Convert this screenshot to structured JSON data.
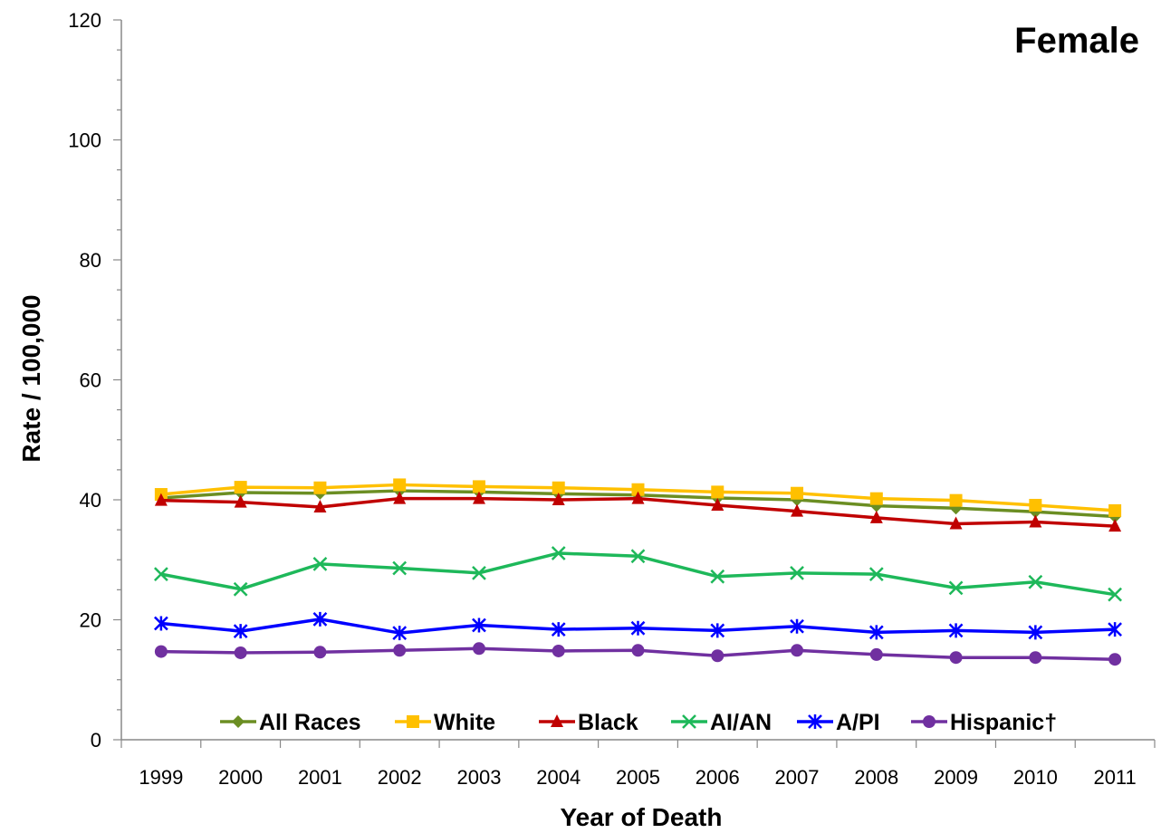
{
  "chart_data": {
    "type": "line",
    "title": "Female",
    "xlabel": "Year of Death",
    "ylabel": "Rate / 100,000",
    "ylim": [
      0,
      120
    ],
    "yticks": [
      0,
      20,
      40,
      60,
      80,
      100,
      120
    ],
    "grid": false,
    "legend_position": "bottom-inside",
    "x": [
      "1999",
      "2000",
      "2001",
      "2002",
      "2003",
      "2004",
      "2005",
      "2006",
      "2007",
      "2008",
      "2009",
      "2010",
      "2011"
    ],
    "series": [
      {
        "name": "All Races",
        "color": "#6b8e23",
        "marker": "diamond",
        "values": [
          40.3,
          41.2,
          41.1,
          41.5,
          41.3,
          41.0,
          40.8,
          40.3,
          40.0,
          39.0,
          38.6,
          38.0,
          37.2
        ]
      },
      {
        "name": "White",
        "color": "#ffc000",
        "marker": "square",
        "values": [
          40.9,
          42.1,
          42.0,
          42.5,
          42.2,
          42.0,
          41.7,
          41.3,
          41.1,
          40.2,
          39.9,
          39.1,
          38.2
        ]
      },
      {
        "name": "Black",
        "color": "#c00000",
        "marker": "triangle",
        "values": [
          39.9,
          39.6,
          38.8,
          40.2,
          40.2,
          40.0,
          40.2,
          39.1,
          38.1,
          37.0,
          36.0,
          36.3,
          35.6
        ]
      },
      {
        "name": "AI/AN",
        "color": "#1eb85a",
        "marker": "x",
        "values": [
          27.6,
          25.1,
          29.3,
          28.6,
          27.8,
          31.1,
          30.6,
          27.2,
          27.8,
          27.6,
          25.3,
          26.3,
          24.2
        ]
      },
      {
        "name": "A/PI",
        "color": "#0000ff",
        "marker": "asterisk",
        "values": [
          19.4,
          18.1,
          20.1,
          17.8,
          19.1,
          18.4,
          18.6,
          18.2,
          18.9,
          17.9,
          18.2,
          17.9,
          18.4
        ]
      },
      {
        "name": "Hispanic†",
        "color": "#7030a0",
        "marker": "circle",
        "values": [
          14.7,
          14.5,
          14.6,
          14.9,
          15.2,
          14.8,
          14.9,
          14.0,
          14.9,
          14.2,
          13.7,
          13.7,
          13.4
        ]
      }
    ]
  }
}
